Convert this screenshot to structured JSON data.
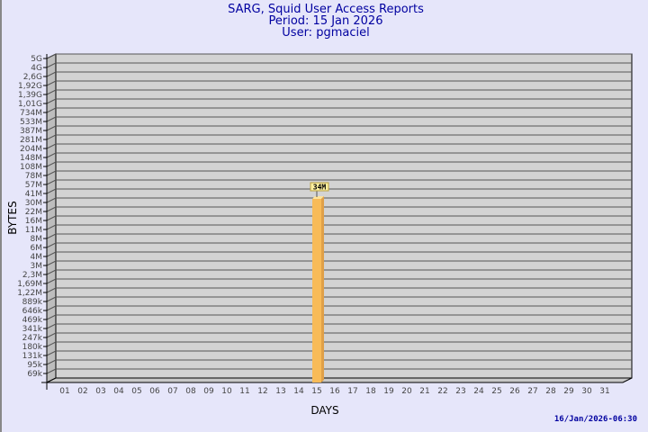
{
  "chart_data": {
    "type": "bar",
    "title": [
      "SARG, Squid User Access Reports",
      "Period: 15 Jan 2026",
      "User: pgmaciel"
    ],
    "xlabel": "DAYS",
    "ylabel": "BYTES",
    "y_scale": "log",
    "yticks": [
      "5G",
      "4G",
      "2,6G",
      "1,92G",
      "1,39G",
      "1,01G",
      "734M",
      "533M",
      "387M",
      "281M",
      "204M",
      "148M",
      "108M",
      "78M",
      "57M",
      "41M",
      "30M",
      "22M",
      "16M",
      "11M",
      "8M",
      "6M",
      "4M",
      "3M",
      "2,3M",
      "1,69M",
      "1,22M",
      "889k",
      "646k",
      "469k",
      "341k",
      "247k",
      "180k",
      "131k",
      "95k",
      "69k"
    ],
    "categories": [
      "01",
      "02",
      "03",
      "04",
      "05",
      "06",
      "07",
      "08",
      "09",
      "10",
      "11",
      "12",
      "13",
      "14",
      "15",
      "16",
      "17",
      "18",
      "19",
      "20",
      "21",
      "22",
      "23",
      "24",
      "25",
      "26",
      "27",
      "28",
      "29",
      "30",
      "31"
    ],
    "values": {
      "15": "34M"
    },
    "data_labels": {
      "15": "34M"
    },
    "grid": true,
    "colors": {
      "bar": "#f8bb58",
      "wall": "#d3d3d3",
      "background": "#e6e6fa",
      "title": "#0000a0"
    }
  },
  "footer": {
    "timestamp": "16/Jan/2026-06:30"
  }
}
